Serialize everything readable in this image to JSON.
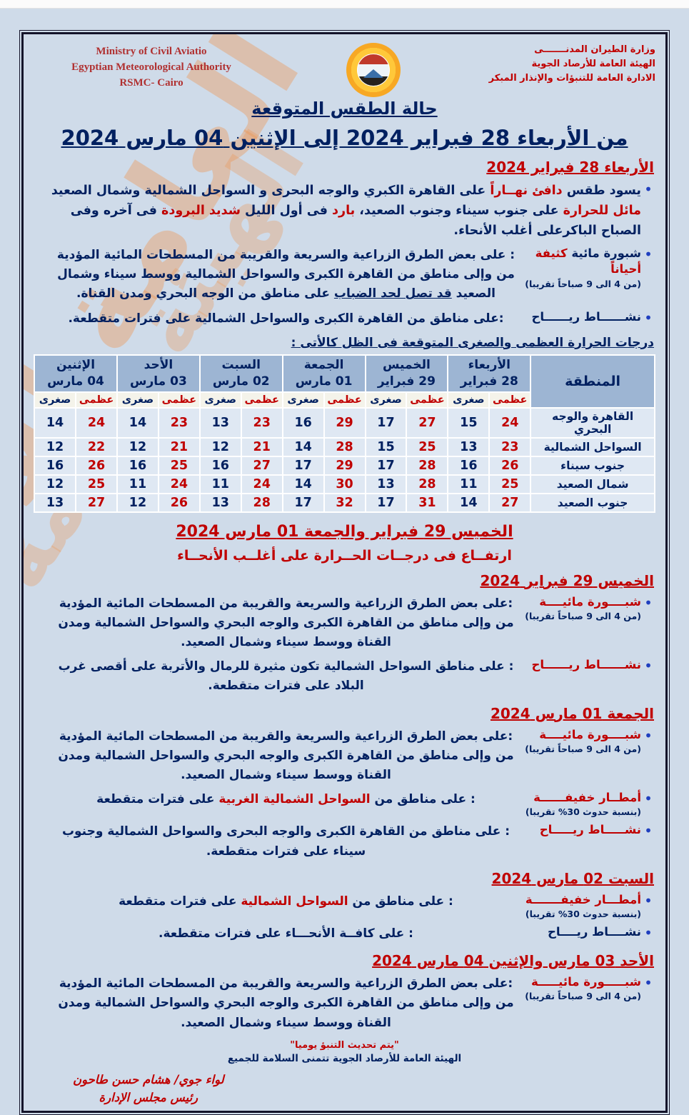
{
  "header": {
    "arabic_lines": [
      "وزارة الطيران المدنـــــــى",
      "الهيئة العامة للأرصاد الجوية",
      "الادارة العامة للتنبؤات والإنذار المبكر"
    ],
    "english_lines": [
      "Ministry of Civil Aviatio",
      "Egyptian Meteorological Authority",
      "RSMC- Cairo"
    ],
    "emblem": "egypt-meteorological-sun-flag-emblem"
  },
  "title": "حالة الطقس المتوقعة",
  "subtitle": "من الأربعاء 28 فبراير 2024 إلى الإثنين 04 مارس 2024",
  "watermark": "الهيئة العامة للأرصاد الجوية",
  "table": {
    "caption": "درجات الحرارة العظمى والصغرى المتوقعة فى الظل كالأتى :",
    "region_header": "المنطقة",
    "max_label": "عظمى",
    "min_label": "صغرى",
    "days": [
      {
        "name": "الأربعاء",
        "date": "28 فبراير"
      },
      {
        "name": "الخميس",
        "date": "29 فبراير"
      },
      {
        "name": "الجمعة",
        "date": "01 مارس"
      },
      {
        "name": "السبت",
        "date": "02 مارس"
      },
      {
        "name": "الأحد",
        "date": "03 مارس"
      },
      {
        "name": "الإثنين",
        "date": "04 مارس"
      }
    ],
    "rows": [
      {
        "region": "القاهرة والوجه البحري",
        "temps": [
          [
            24,
            15
          ],
          [
            27,
            17
          ],
          [
            29,
            16
          ],
          [
            23,
            13
          ],
          [
            23,
            14
          ],
          [
            24,
            14
          ]
        ]
      },
      {
        "region": "السواحل الشمالية",
        "temps": [
          [
            23,
            13
          ],
          [
            25,
            15
          ],
          [
            28,
            14
          ],
          [
            21,
            12
          ],
          [
            21,
            12
          ],
          [
            22,
            12
          ]
        ]
      },
      {
        "region": "جنوب سيناء",
        "temps": [
          [
            26,
            16
          ],
          [
            28,
            17
          ],
          [
            29,
            17
          ],
          [
            27,
            16
          ],
          [
            25,
            16
          ],
          [
            26,
            16
          ]
        ]
      },
      {
        "region": "شمال الصعيد",
        "temps": [
          [
            25,
            11
          ],
          [
            28,
            13
          ],
          [
            30,
            14
          ],
          [
            24,
            11
          ],
          [
            24,
            11
          ],
          [
            25,
            12
          ]
        ]
      },
      {
        "region": "جنوب الصعيد",
        "temps": [
          [
            27,
            14
          ],
          [
            31,
            17
          ],
          [
            32,
            17
          ],
          [
            28,
            13
          ],
          [
            26,
            12
          ],
          [
            27,
            13
          ]
        ]
      }
    ]
  },
  "mid_banner": {
    "heading": "الخميس 29 فبراير والجمعة 01 مارس 2024",
    "subheading": "ارتفــاع فى درجــات الحــرارة على أغلــب الأنحــاء"
  },
  "sections": [
    {
      "heading": "الأربعاء 28 فبراير 2024",
      "items": [
        {
          "content": [
            {
              "t": "يسود طقس "
            },
            {
              "t": "دافئ نهــاراً ",
              "c": "red"
            },
            {
              "t": "على القاهرة الكبري والوجه البحرى و السواحل الشمالية وشمال الصعيد "
            },
            {
              "t": "مائل للحرارة ",
              "c": "red"
            },
            {
              "t": "على جنوب سيناء وجنوب الصعيد، "
            },
            {
              "t": "بارد ",
              "c": "red"
            },
            {
              "t": "فى أول الليل "
            },
            {
              "t": "شديد البرودة ",
              "c": "red"
            },
            {
              "t": "فى آخره وفى الصباح الباكرعلى أغلب الأنحاء."
            }
          ]
        },
        {
          "label": [
            {
              "t": "شبورة مائية ",
              "c": "navy"
            },
            {
              "t": "كثيفة أحياناً",
              "c": "red"
            }
          ],
          "note": "(من 4 الى 9 صباحاً تقريبا)",
          "content": [
            {
              "t": ": على بعض الطرق الزراعية والسريعة والقريبة من المسطحات المائية المؤدية من وإلى مناطق من القاهرة الكبرى والسواحل الشمالية ووسط سيناء وشمال الصعيد "
            },
            {
              "t": "قد تصل لحد الضباب",
              "c": "ul"
            },
            {
              "t": " على مناطق من الوجه البحري ومدن القناة."
            }
          ]
        },
        {
          "label": [
            {
              "t": "نشــــــاط ريــــــاح",
              "c": "navy"
            }
          ],
          "content": [
            {
              "t": ":على مناطق من القاهرة الكبرى والسواحل الشمالية على فترات متقطعة."
            }
          ]
        }
      ]
    },
    {
      "heading": "الخميس 29 فبراير 2024",
      "items": [
        {
          "label": [
            {
              "t": "شبــــورة مائيــــة",
              "c": "red"
            }
          ],
          "note": "(من 4 الى 9 صباحاً تقريبا)",
          "content": [
            {
              "t": ":على بعض الطرق الزراعية والسريعة والقريبة من المسطحات المائية المؤدية من وإلى مناطق من القاهرة الكبرى والوجه البحري والسواحل الشمالية ومدن القناة ووسط سيناء وشمال الصعيد."
            }
          ]
        },
        {
          "label": [
            {
              "t": "نشــــــاط ريــــــاح",
              "c": "red"
            }
          ],
          "content": [
            {
              "t": ": على مناطق السواحل الشمالية تكون مثيرة للرمال والأتربة على أقصى غرب البلاد على فترات متقطعة."
            }
          ]
        }
      ]
    },
    {
      "heading": "الجمعة 01 مارس 2024",
      "items": [
        {
          "label": [
            {
              "t": "شبــــورة مائيــــة",
              "c": "red"
            }
          ],
          "note": "(من 4 الى 9 صباحاً تقريبا)",
          "content": [
            {
              "t": ":على بعض الطرق الزراعية والسريعة والقريبة من المسطحات المائية المؤدية من وإلى مناطق من القاهرة الكبرى والوجه البحري والسواحل الشمالية ومدن القناة ووسط سيناء وشمال الصعيد."
            }
          ]
        },
        {
          "label": [
            {
              "t": "أمطــار خفيفــــــة",
              "c": "red"
            }
          ],
          "note": "(بنسبة حدوث 30% تقريبا)",
          "content": [
            {
              "t": ": على مناطق من "
            },
            {
              "t": "السواحل الشمالية الغربية",
              "c": "red"
            },
            {
              "t": "  على فترات متقطعة"
            }
          ]
        },
        {
          "label": [
            {
              "t": "نشـــــاط ريـــــاح",
              "c": "red"
            }
          ],
          "content": [
            {
              "t": ": على مناطق من القاهرة الكبرى والوجه البحرى والسواحل الشمالية وجنوب سيناء على فترات متقطعة."
            }
          ]
        }
      ]
    },
    {
      "heading": "السبت 02 مارس 2024",
      "items": [
        {
          "label": [
            {
              "t": "أمطـــار خفيفـــــــة",
              "c": "red"
            }
          ],
          "note": "(بنسبة حدوث 30% تقريبا)",
          "content": [
            {
              "t": ": على مناطق من "
            },
            {
              "t": "السواحل الشمالية",
              "c": "red"
            },
            {
              "t": " على فترات متقطعة"
            }
          ]
        },
        {
          "label": [
            {
              "t": "نشــــاط ريــــاح",
              "c": "navy"
            }
          ],
          "content": [
            {
              "t": ": على كافــة الأنحـــاء على فترات متقطعة."
            }
          ]
        }
      ]
    },
    {
      "heading": "الأحد 03 مارس والإثنين 04 مارس 2024",
      "items": [
        {
          "label": [
            {
              "t": "شبـــــورة مائيـــــة",
              "c": "red"
            }
          ],
          "note": "(من 4 الى 9 صباحاً تقريبا)",
          "content": [
            {
              "t": ":على بعض الطرق الزراعية والسريعة والقريبة من المسطحات المائية المؤدية من وإلى مناطق من القاهرة الكبرى والوجه البحري والسواحل الشمالية ومدن القناة ووسط سيناء وشمال الصعيد."
            }
          ]
        }
      ]
    }
  ],
  "footer": {
    "quote": "\"يتم تحديث التنبؤ يوميا\"",
    "org_line": "الهيئة العامة للأرصاد الجوية تتمنى السلامة للجميع"
  },
  "signature": {
    "line1": "لواء جوي/ هشام حسن طاحون",
    "line2": "رئيس مجلس الإدارة"
  },
  "colors": {
    "red": "#c00000",
    "navy": "#002060",
    "page_background": "#cfdbe9",
    "table_header_background": "#9db5d3",
    "table_cell_background": "#dfe8f3",
    "watermark_orange": "#ee9652"
  }
}
